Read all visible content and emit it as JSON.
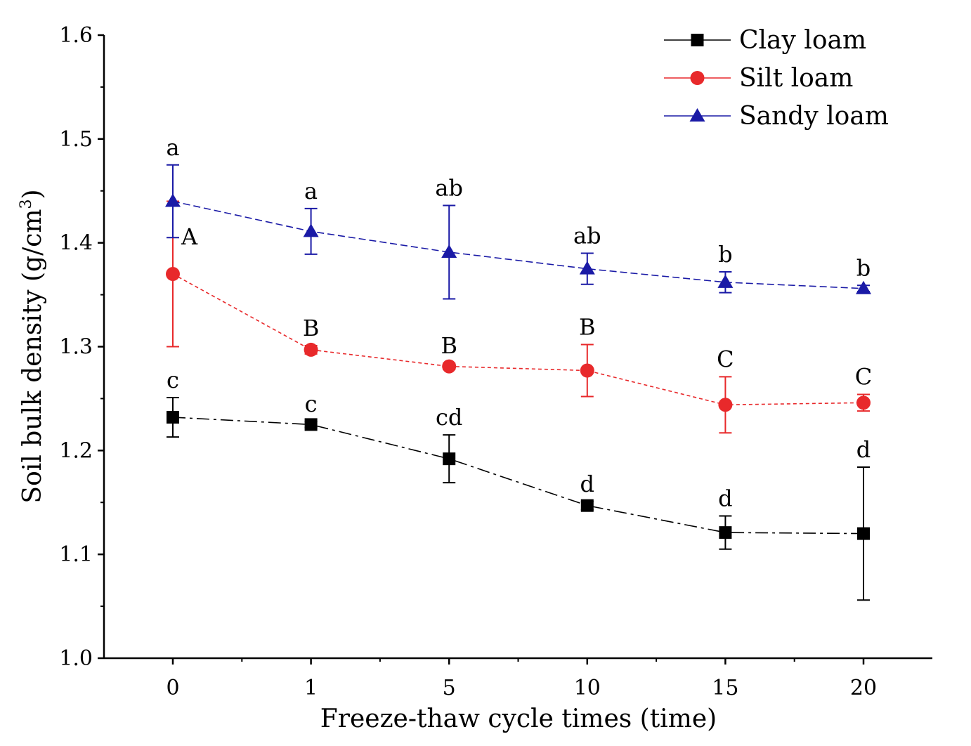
{
  "chart_data": {
    "type": "line",
    "title": "",
    "xlabel": "Freeze-thaw cycle times (time)",
    "ylabel": "Soil bulk density (g/cm",
    "ylabel_sup": "3",
    "ylabel_close": ")",
    "categories": [
      "0",
      "1",
      "5",
      "10",
      "15",
      "20"
    ],
    "ylim": [
      1.0,
      1.6
    ],
    "yticks": [
      "1.0",
      "1.1",
      "1.2",
      "1.3",
      "1.4",
      "1.5",
      "1.6"
    ],
    "legend_position": "top-right",
    "series": [
      {
        "name": "Clay loam",
        "color": "#000000",
        "marker": "square",
        "values": [
          1.232,
          1.225,
          1.192,
          1.147,
          1.121,
          1.12
        ],
        "errors": [
          0.019,
          0.003,
          0.023,
          0.004,
          0.016,
          0.064
        ],
        "labels": [
          "c",
          "c",
          "cd",
          "d",
          "d",
          "d"
        ]
      },
      {
        "name": "Silt loam",
        "color": "#e8292b",
        "marker": "circle",
        "values": [
          1.37,
          1.297,
          1.281,
          1.277,
          1.244,
          1.246
        ],
        "errors": [
          0.07,
          0.004,
          0.003,
          0.025,
          0.027,
          0.008
        ],
        "labels": [
          "A",
          "B",
          "B",
          "B",
          "C",
          "C"
        ]
      },
      {
        "name": "Sandy loam",
        "color": "#1a1aa6",
        "marker": "triangle",
        "values": [
          1.44,
          1.411,
          1.391,
          1.375,
          1.362,
          1.356
        ],
        "errors": [
          0.035,
          0.022,
          0.045,
          0.015,
          0.01,
          0.003
        ],
        "labels": [
          "a",
          "a",
          "ab",
          "ab",
          "b",
          "b"
        ]
      }
    ]
  }
}
